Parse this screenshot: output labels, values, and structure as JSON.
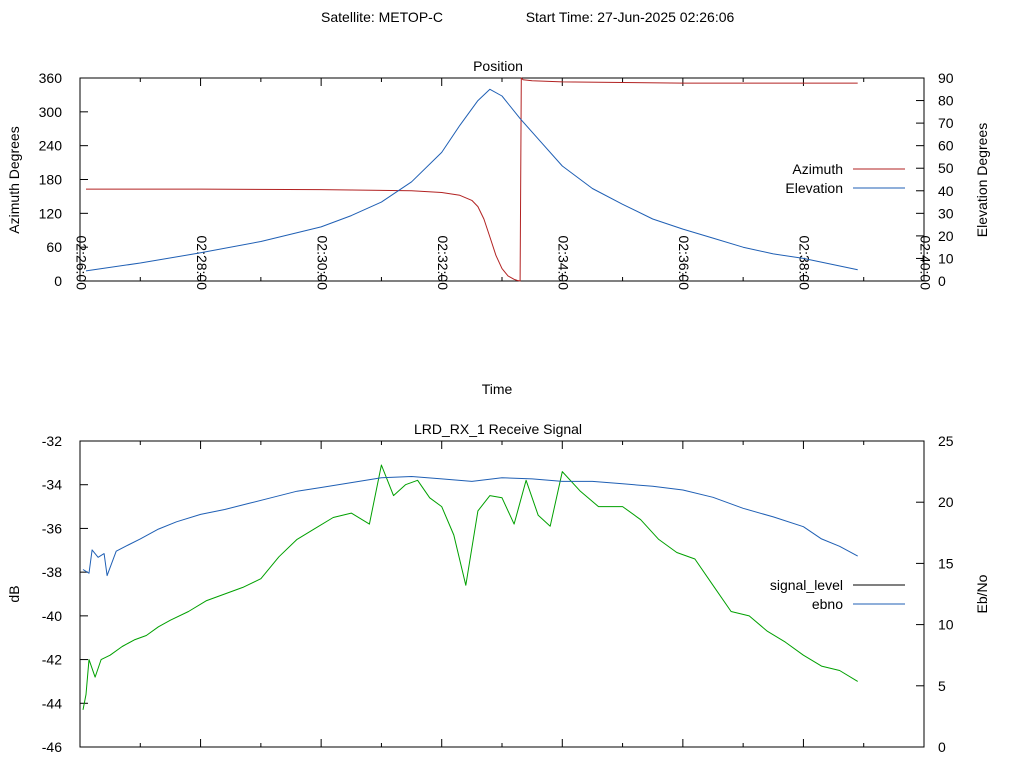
{
  "header": {
    "satellite_label": "Satellite: METOP-C",
    "start_time_label": "Start Time: 27-Jun-2025 02:26:06"
  },
  "chart_data": [
    {
      "type": "line",
      "title": "Position",
      "xlabel": "Time",
      "ylabel": "Azimuth Degrees",
      "y2label": "Elevation Degrees",
      "x_ticks": [
        "02:26:00",
        "02:28:00",
        "02:30:00",
        "02:32:00",
        "02:34:00",
        "02:36:00",
        "02:38:00",
        "02:40:00"
      ],
      "x_range_minutes": [
        0,
        14
      ],
      "ylim": [
        0,
        360
      ],
      "y_ticks": [
        "0",
        "60",
        "120",
        "180",
        "240",
        "300",
        "360"
      ],
      "y2lim": [
        0,
        90
      ],
      "y2_ticks": [
        "0",
        "10",
        "20",
        "30",
        "40",
        "50",
        "60",
        "70",
        "80",
        "90"
      ],
      "legend_position": "right",
      "grid": false,
      "series": [
        {
          "name": "Azimuth",
          "axis": "left",
          "color": "#b22222",
          "x": [
            0.1,
            2.0,
            4.0,
            5.5,
            6.0,
            6.3,
            6.5,
            6.6,
            6.7,
            6.8,
            6.9,
            7.0,
            7.1,
            7.2,
            7.25,
            7.3,
            7.32,
            7.35,
            7.5,
            8.0,
            9.0,
            10.0,
            11.0,
            12.0,
            12.9
          ],
          "values": [
            163,
            163,
            162,
            160,
            157,
            152,
            143,
            132,
            110,
            78,
            45,
            22,
            9,
            3,
            1,
            0,
            360,
            357,
            355,
            353,
            352,
            351,
            351,
            351,
            351
          ]
        },
        {
          "name": "Elevation",
          "axis": "right",
          "color": "#1f5fb4",
          "x": [
            0.1,
            1.0,
            2.0,
            3.0,
            4.0,
            4.5,
            5.0,
            5.5,
            6.0,
            6.3,
            6.6,
            6.8,
            7.0,
            7.3,
            7.6,
            8.0,
            8.5,
            9.0,
            9.5,
            10.0,
            10.5,
            11.0,
            11.5,
            12.0,
            12.9
          ],
          "values": [
            4.5,
            8,
            12.5,
            17.5,
            24,
            29,
            35,
            44,
            57,
            69,
            80,
            85,
            82,
            72,
            63,
            51,
            41,
            34,
            27.5,
            23,
            19,
            15,
            12,
            10,
            5
          ]
        }
      ]
    },
    {
      "type": "line",
      "title": "LRD_RX_1 Receive Signal",
      "ylabel": "dB",
      "y2label": "Eb/No",
      "x_range_minutes": [
        0,
        14
      ],
      "ylim": [
        -46,
        -32
      ],
      "y_ticks": [
        "-46",
        "-44",
        "-42",
        "-40",
        "-38",
        "-36",
        "-34",
        "-32"
      ],
      "y2lim": [
        0,
        25
      ],
      "y2_ticks": [
        "0",
        "5",
        "10",
        "15",
        "20",
        "25"
      ],
      "legend_position": "right",
      "grid": false,
      "series": [
        {
          "name": "signal_level",
          "axis": "left",
          "color": "#00a000",
          "x": [
            0.05,
            0.1,
            0.15,
            0.25,
            0.35,
            0.5,
            0.7,
            0.9,
            1.1,
            1.3,
            1.5,
            1.8,
            2.1,
            2.4,
            2.7,
            3.0,
            3.3,
            3.6,
            3.9,
            4.2,
            4.5,
            4.8,
            5.0,
            5.2,
            5.4,
            5.6,
            5.8,
            6.0,
            6.2,
            6.4,
            6.6,
            6.8,
            7.0,
            7.2,
            7.4,
            7.6,
            7.8,
            8.0,
            8.3,
            8.6,
            9.0,
            9.3,
            9.6,
            9.9,
            10.2,
            10.5,
            10.8,
            11.1,
            11.4,
            11.7,
            12.0,
            12.3,
            12.6,
            12.9
          ],
          "values": [
            -44.3,
            -43.6,
            -42.0,
            -42.8,
            -42.0,
            -41.8,
            -41.4,
            -41.1,
            -40.9,
            -40.5,
            -40.2,
            -39.8,
            -39.3,
            -39.0,
            -38.7,
            -38.3,
            -37.3,
            -36.5,
            -36.0,
            -35.5,
            -35.3,
            -35.8,
            -33.1,
            -34.5,
            -34.0,
            -33.8,
            -34.6,
            -35.0,
            -36.3,
            -38.6,
            -35.2,
            -34.5,
            -34.6,
            -35.8,
            -33.8,
            -35.4,
            -35.9,
            -33.4,
            -34.3,
            -35.0,
            -35.0,
            -35.6,
            -36.5,
            -37.1,
            -37.4,
            -38.6,
            -39.8,
            -40.0,
            -40.7,
            -41.2,
            -41.8,
            -42.3,
            -42.5,
            -43.0
          ]
        },
        {
          "name": "ebno",
          "axis": "right",
          "color": "#1f5fb4",
          "x": [
            0.05,
            0.15,
            0.2,
            0.3,
            0.4,
            0.45,
            0.6,
            0.8,
            1.0,
            1.3,
            1.6,
            2.0,
            2.4,
            2.8,
            3.2,
            3.6,
            4.0,
            4.5,
            5.0,
            5.5,
            6.0,
            6.5,
            7.0,
            7.5,
            8.0,
            8.5,
            9.0,
            9.5,
            10.0,
            10.5,
            11.0,
            11.5,
            12.0,
            12.3,
            12.6,
            12.9
          ],
          "values": [
            14.5,
            14.2,
            16.1,
            15.5,
            15.8,
            14.0,
            16.0,
            16.5,
            17.0,
            17.8,
            18.4,
            19.0,
            19.4,
            19.9,
            20.4,
            20.9,
            21.2,
            21.6,
            22.0,
            22.1,
            21.9,
            21.7,
            22.0,
            21.9,
            21.7,
            21.7,
            21.5,
            21.3,
            21.0,
            20.4,
            19.5,
            18.8,
            18.0,
            17.0,
            16.4,
            15.6
          ]
        }
      ]
    }
  ]
}
